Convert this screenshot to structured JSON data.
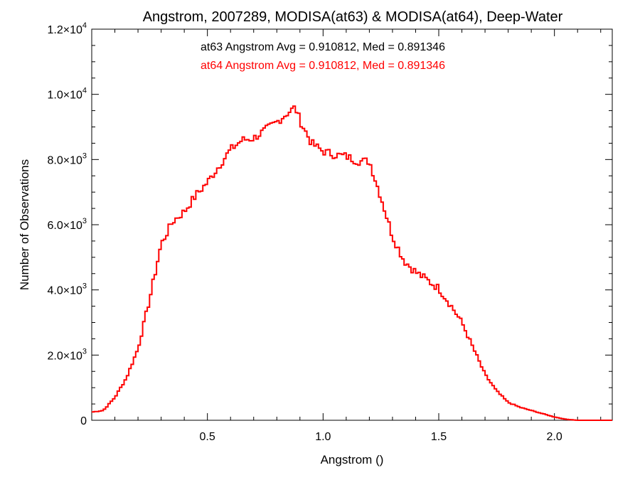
{
  "chart_data": {
    "type": "histogram-step",
    "title": "Angstrom, 2007289, MODISA(at63) & MODISA(at64), Deep-Water",
    "xlabel": "Angstrom ()",
    "ylabel": "Number of Observations",
    "xlim": [
      0.0,
      2.25
    ],
    "ylim": [
      0,
      12000
    ],
    "x_ticks": [
      {
        "value": 0.5,
        "label": "0.5"
      },
      {
        "value": 1.0,
        "label": "1.0"
      },
      {
        "value": 1.5,
        "label": "1.5"
      },
      {
        "value": 2.0,
        "label": "2.0"
      }
    ],
    "y_ticks": [
      {
        "value": 0,
        "mant": "0",
        "exp": ""
      },
      {
        "value": 2000,
        "mant": "2.0×10",
        "exp": "3"
      },
      {
        "value": 4000,
        "mant": "4.0×10",
        "exp": "3"
      },
      {
        "value": 6000,
        "mant": "6.0×10",
        "exp": "3"
      },
      {
        "value": 8000,
        "mant": "8.0×10",
        "exp": "3"
      },
      {
        "value": 10000,
        "mant": "1.0×10",
        "exp": "4"
      },
      {
        "value": 12000,
        "mant": "1.2×10",
        "exp": "4"
      }
    ],
    "annotations": [
      {
        "text": "at63 Angstrom Avg = 0.910812, Med = 0.891346",
        "color": "#000000"
      },
      {
        "text": "at64 Angstrom Avg = 0.910812, Med = 0.891346",
        "color": "#ff0000"
      }
    ],
    "series": [
      {
        "color": "#ff0000",
        "bin_width": 0.01,
        "bin_start": 0.0,
        "x": [
          0.0,
          0.05,
          0.1,
          0.15,
          0.2,
          0.25,
          0.3,
          0.35,
          0.4,
          0.45,
          0.5,
          0.55,
          0.6,
          0.65,
          0.7,
          0.75,
          0.8,
          0.85,
          0.88,
          0.9,
          0.95,
          1.0,
          1.05,
          1.1,
          1.15,
          1.2,
          1.25,
          1.3,
          1.35,
          1.4,
          1.45,
          1.5,
          1.55,
          1.6,
          1.65,
          1.7,
          1.75,
          1.8,
          1.85,
          1.9,
          1.95,
          2.0,
          2.05,
          2.1,
          2.14,
          2.25
        ],
        "y": [
          250,
          300,
          700,
          1300,
          2200,
          3700,
          5400,
          6100,
          6400,
          6900,
          7300,
          7800,
          8300,
          8600,
          8650,
          8900,
          9150,
          9450,
          9600,
          9200,
          8500,
          8250,
          8150,
          8100,
          7950,
          7950,
          6850,
          5650,
          4900,
          4550,
          4300,
          4050,
          3550,
          3000,
          2200,
          1400,
          900,
          550,
          400,
          300,
          200,
          100,
          30,
          0,
          0,
          0
        ]
      }
    ]
  }
}
